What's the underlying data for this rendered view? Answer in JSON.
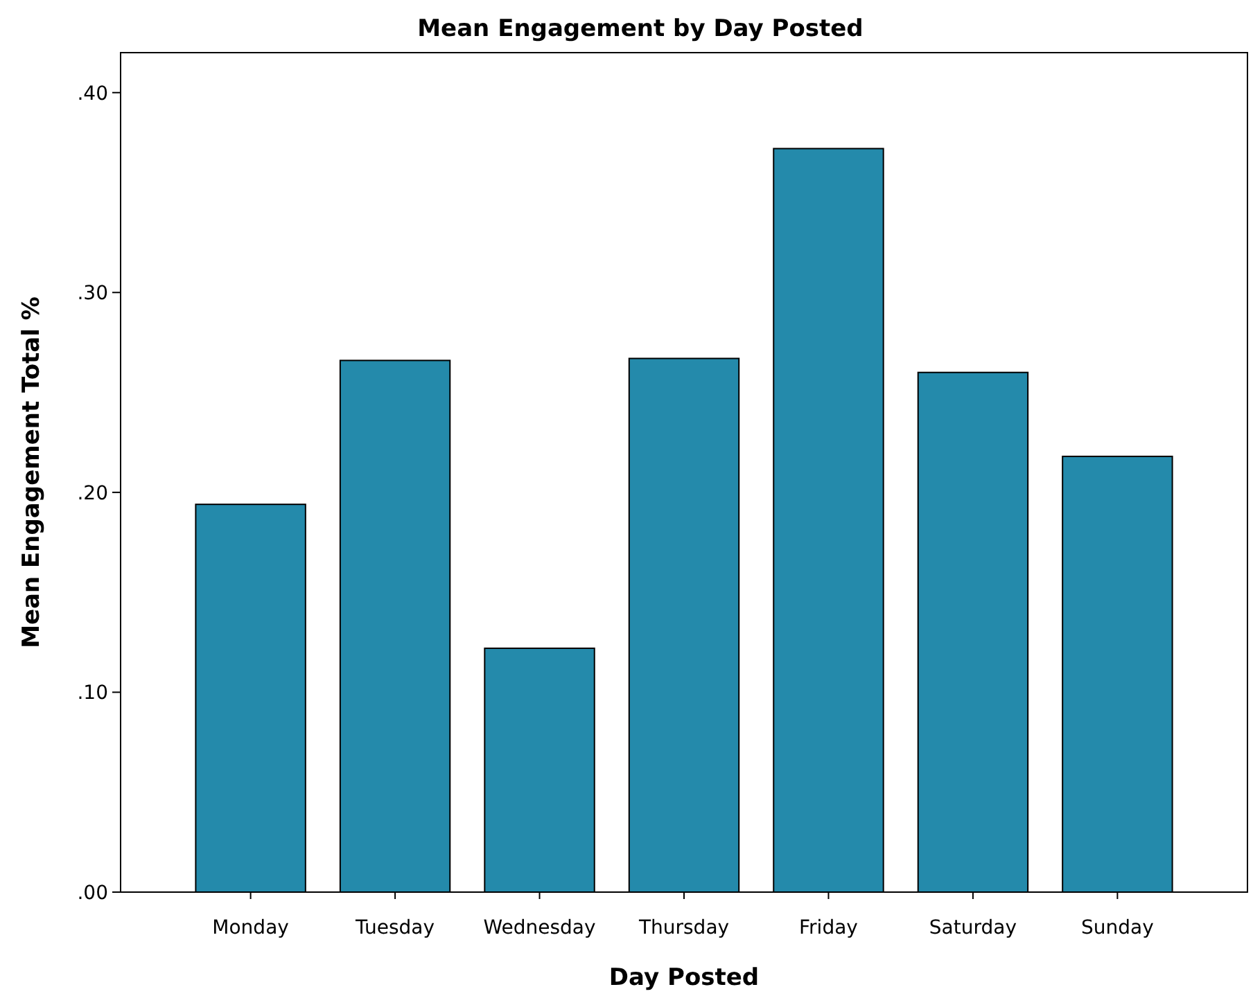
{
  "chart_data": {
    "type": "bar",
    "title": "Mean Engagement by Day Posted",
    "xlabel": "Day Posted",
    "ylabel": "Mean Engagement Total %",
    "categories": [
      "Monday",
      "Tuesday",
      "Wednesday",
      "Thursday",
      "Friday",
      "Saturday",
      "Sunday"
    ],
    "values": [
      0.194,
      0.266,
      0.122,
      0.267,
      0.372,
      0.26,
      0.218
    ],
    "color": "#248aab",
    "ylim": [
      0,
      0.42
    ],
    "yticks": [
      {
        "value": 0,
        "label": ".00"
      },
      {
        "value": 0.1,
        "label": ".10"
      },
      {
        "value": 0.2,
        "label": ".20"
      },
      {
        "value": 0.3,
        "label": ".30"
      },
      {
        "value": 0.4,
        "label": ".40"
      }
    ],
    "grid": false
  }
}
